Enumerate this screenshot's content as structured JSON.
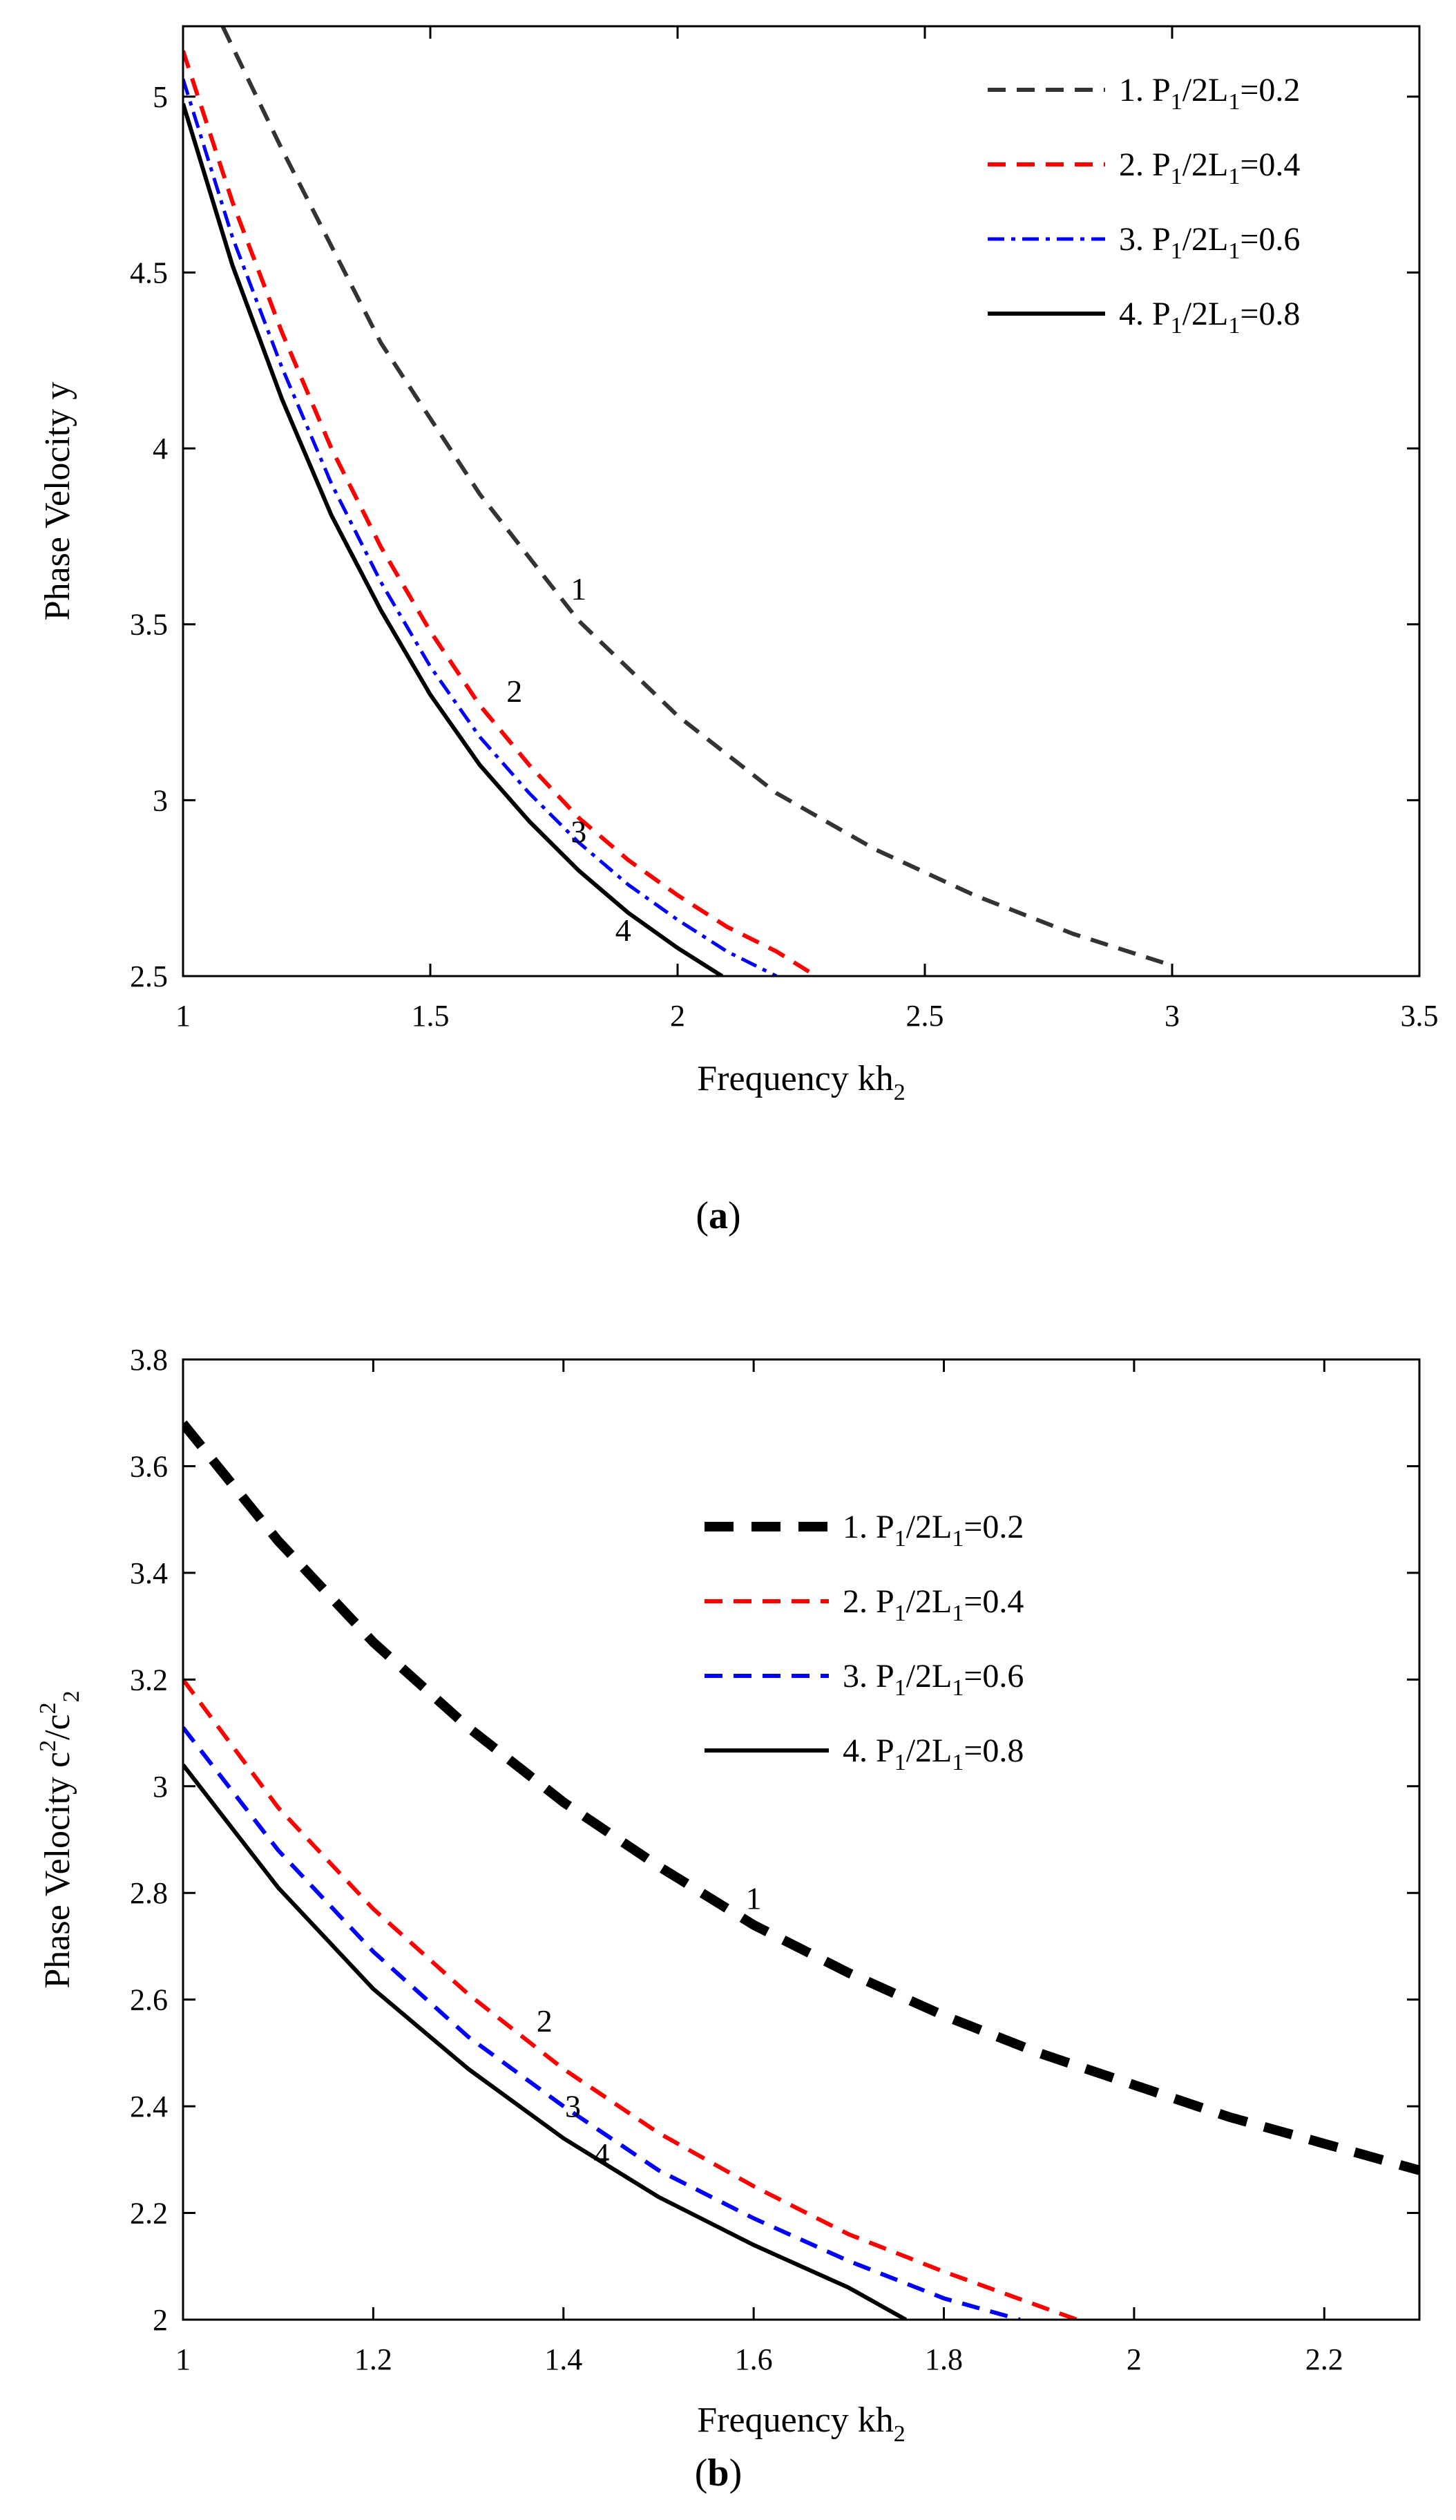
{
  "chart_data": [
    {
      "id": "a",
      "type": "line",
      "caption": "a",
      "xlabel": "Frequency kh",
      "xlabel_sub": "2",
      "ylabel": "Phase Velocity y",
      "xlim": [
        1,
        3.5
      ],
      "ylim": [
        2.5,
        5.2
      ],
      "xticks": [
        1,
        1.5,
        2,
        2.5,
        3,
        3.5
      ],
      "xtick_labels": [
        "1",
        "1.5",
        "2",
        "2.5",
        "3",
        "3.5"
      ],
      "yticks": [
        2.5,
        3,
        3.5,
        4,
        4.5,
        5
      ],
      "ytick_labels": [
        "2.5",
        "3",
        "3.5",
        "4",
        "4.5",
        "5"
      ],
      "grid": false,
      "legend_position": "top-right",
      "series": [
        {
          "name": "1",
          "legend_prefix": "1. P",
          "legend_mid": "/2L",
          "legend_suffix": "=0.2",
          "legend_sub1": "1",
          "legend_sub2": "1",
          "color": "#333333",
          "style": "dashed",
          "width": 6,
          "x": [
            1.08,
            1.2,
            1.4,
            1.6,
            1.8,
            2.0,
            2.2,
            2.4,
            2.6,
            2.8,
            3.0
          ],
          "y": [
            5.2,
            4.85,
            4.3,
            3.87,
            3.51,
            3.24,
            3.02,
            2.86,
            2.73,
            2.62,
            2.53
          ]
        },
        {
          "name": "2",
          "legend_prefix": "2. P",
          "legend_mid": "/2L",
          "legend_suffix": "=0.4",
          "legend_sub1": "1",
          "legend_sub2": "1",
          "color": "#ff0000",
          "style": "dashed",
          "width": 6,
          "x": [
            1.0,
            1.1,
            1.2,
            1.3,
            1.4,
            1.5,
            1.6,
            1.7,
            1.8,
            1.9,
            2.0,
            2.1,
            2.2,
            2.28
          ],
          "y": [
            5.13,
            4.7,
            4.33,
            4.0,
            3.72,
            3.48,
            3.27,
            3.1,
            2.95,
            2.83,
            2.73,
            2.64,
            2.57,
            2.5
          ]
        },
        {
          "name": "3",
          "legend_prefix": "3. P",
          "legend_mid": "/2L",
          "legend_suffix": "=0.6",
          "legend_sub1": "1",
          "legend_sub2": "1",
          "color": "#0000ff",
          "style": "dashdot",
          "width": 5,
          "x": [
            1.0,
            1.1,
            1.2,
            1.3,
            1.4,
            1.5,
            1.6,
            1.7,
            1.8,
            1.9,
            2.0,
            2.1,
            2.2
          ],
          "y": [
            5.05,
            4.6,
            4.23,
            3.9,
            3.62,
            3.38,
            3.18,
            3.02,
            2.88,
            2.76,
            2.66,
            2.57,
            2.5
          ]
        },
        {
          "name": "4",
          "legend_prefix": "4. P",
          "legend_mid": "/2L",
          "legend_suffix": "=0.8",
          "legend_sub1": "1",
          "legend_sub2": "1",
          "color": "#000000",
          "style": "solid",
          "width": 6,
          "x": [
            1.0,
            1.1,
            1.2,
            1.3,
            1.4,
            1.5,
            1.6,
            1.7,
            1.8,
            1.9,
            2.0,
            2.09
          ],
          "y": [
            4.98,
            4.52,
            4.14,
            3.81,
            3.54,
            3.3,
            3.1,
            2.94,
            2.8,
            2.68,
            2.58,
            2.5
          ]
        }
      ],
      "annotations": [
        {
          "text": "1",
          "x": 1.8,
          "y": 3.57
        },
        {
          "text": "2",
          "x": 1.67,
          "y": 3.28
        },
        {
          "text": "3",
          "x": 1.8,
          "y": 2.88
        },
        {
          "text": "4",
          "x": 1.89,
          "y": 2.6
        }
      ]
    },
    {
      "id": "b",
      "type": "line",
      "caption": "b",
      "xlabel": "Frequency kh",
      "xlabel_sub": "2",
      "ylabel": "Phase Velocity c",
      "ylabel_sup1": "2",
      "ylabel_mid": "/c",
      "ylabel_sup2": "2",
      "ylabel_sub2": "2",
      "xlim": [
        1,
        2.3
      ],
      "ylim": [
        2,
        3.8
      ],
      "xticks": [
        1,
        1.2,
        1.4,
        1.6,
        1.8,
        2,
        2.2
      ],
      "xtick_labels": [
        "1",
        "1.2",
        "1.4",
        "1.6",
        "1.8",
        "2",
        "2.2"
      ],
      "yticks": [
        2,
        2.2,
        2.4,
        2.6,
        2.8,
        3,
        3.2,
        3.4,
        3.6,
        3.8
      ],
      "ytick_labels": [
        "2",
        "2.2",
        "2.4",
        "2.6",
        "2.8",
        "3",
        "3.2",
        "3.4",
        "3.6",
        "3.8"
      ],
      "grid": false,
      "legend_position": "top-right",
      "series": [
        {
          "name": "1",
          "legend_prefix": "1. P",
          "legend_mid": "/2L",
          "legend_suffix": "=0.2",
          "legend_sub1": "1",
          "legend_sub2": "1",
          "color": "#000000",
          "style": "thickdashed",
          "width": 14,
          "x": [
            1.0,
            1.1,
            1.2,
            1.3,
            1.4,
            1.5,
            1.6,
            1.7,
            1.8,
            1.9,
            2.0,
            2.1,
            2.2,
            2.3
          ],
          "y": [
            3.68,
            3.46,
            3.27,
            3.11,
            2.97,
            2.85,
            2.74,
            2.65,
            2.57,
            2.5,
            2.44,
            2.38,
            2.33,
            2.28
          ]
        },
        {
          "name": "2",
          "legend_prefix": "2. P",
          "legend_mid": "/2L",
          "legend_suffix": "=0.4",
          "legend_sub1": "1",
          "legend_sub2": "1",
          "color": "#ff0000",
          "style": "dashed",
          "width": 6,
          "x": [
            1.0,
            1.1,
            1.2,
            1.3,
            1.4,
            1.5,
            1.6,
            1.7,
            1.8,
            1.94
          ],
          "y": [
            3.2,
            2.96,
            2.77,
            2.61,
            2.47,
            2.35,
            2.25,
            2.16,
            2.09,
            2.0
          ]
        },
        {
          "name": "3",
          "legend_prefix": "3. P",
          "legend_mid": "/2L",
          "legend_suffix": "=0.6",
          "legend_sub1": "1",
          "legend_sub2": "1",
          "color": "#0000ff",
          "style": "dashed",
          "width": 6,
          "x": [
            1.0,
            1.1,
            1.2,
            1.3,
            1.4,
            1.5,
            1.6,
            1.7,
            1.8,
            1.88
          ],
          "y": [
            3.11,
            2.88,
            2.69,
            2.53,
            2.4,
            2.28,
            2.19,
            2.11,
            2.04,
            2.0
          ]
        },
        {
          "name": "4",
          "legend_prefix": "4. P",
          "legend_mid": "/2L",
          "legend_suffix": "=0.8",
          "legend_sub1": "1",
          "legend_sub2": "1",
          "color": "#000000",
          "style": "solid",
          "width": 6,
          "x": [
            1.0,
            1.1,
            1.2,
            1.3,
            1.4,
            1.5,
            1.6,
            1.7,
            1.76
          ],
          "y": [
            3.04,
            2.81,
            2.62,
            2.47,
            2.34,
            2.23,
            2.14,
            2.06,
            2.0
          ]
        }
      ],
      "annotations": [
        {
          "text": "1",
          "x": 1.6,
          "y": 2.77
        },
        {
          "text": "2",
          "x": 1.38,
          "y": 2.54
        },
        {
          "text": "3",
          "x": 1.41,
          "y": 2.38
        },
        {
          "text": "4",
          "x": 1.44,
          "y": 2.29
        }
      ]
    }
  ]
}
